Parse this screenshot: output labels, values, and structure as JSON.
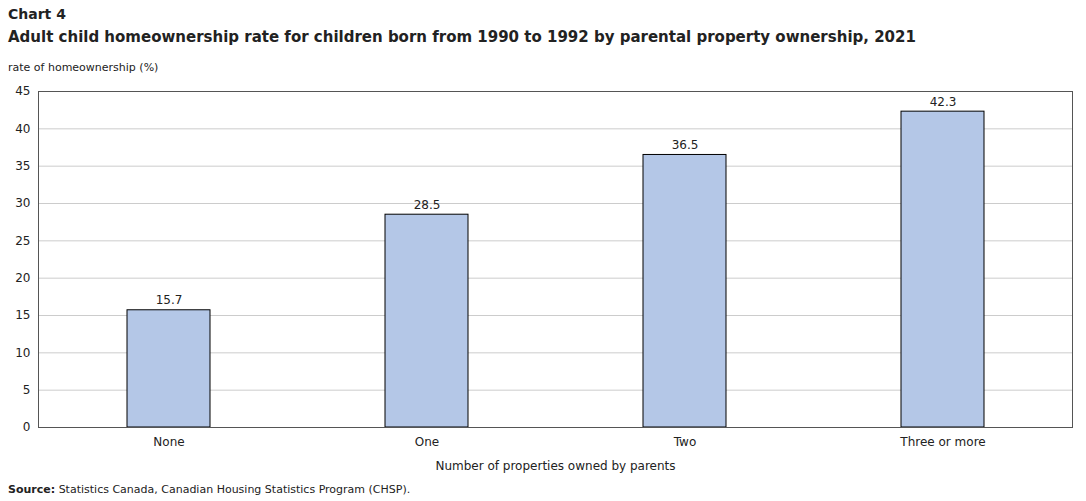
{
  "chart_data": {
    "type": "bar",
    "chart_label": "Chart 4",
    "title": "Adult child homeownership rate for children born from 1990 to 1992 by parental property ownership, 2021",
    "y_label": "rate of homeownership (%)",
    "x_label": "Number of properties owned by parents",
    "source_label": "Source:",
    "source": "Statistics Canada, Canadian Housing Statistics Program (CHSP).",
    "categories": [
      "None",
      "One",
      "Two",
      "Three or more"
    ],
    "values": [
      15.7,
      28.5,
      36.5,
      42.3
    ],
    "color": "#b4c7e7",
    "ylim": [
      0,
      45
    ],
    "yticks": [
      0,
      5,
      10,
      15,
      20,
      25,
      30,
      35,
      40,
      45
    ],
    "grid": true,
    "data_labels": true
  }
}
